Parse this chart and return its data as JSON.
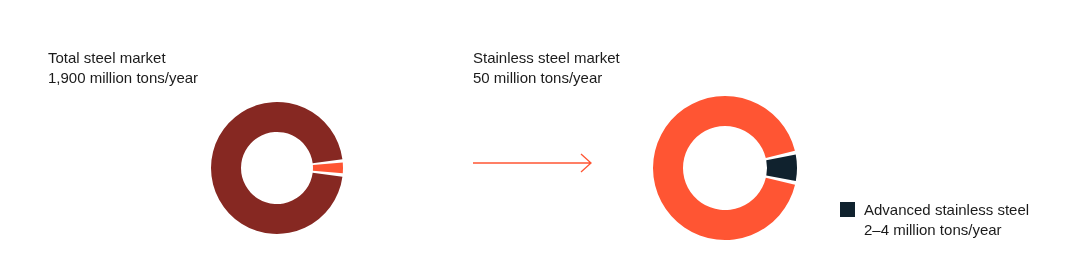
{
  "chart_data": [
    {
      "type": "donut",
      "title": "Total steel market",
      "subtitle": "1,900 million tons/year",
      "categories": [
        null,
        null
      ],
      "values": [
        2.6,
        97.4
      ],
      "colors": [
        "#ff5533",
        "#862822"
      ]
    },
    {
      "type": "donut",
      "title": "Stainless steel market",
      "subtitle": "50 million tons/year",
      "categories": [
        "Advanced stainless steel 2–4 million tons/year",
        null
      ],
      "values": [
        6,
        94
      ],
      "colors": [
        "#10222e",
        "#ff5533"
      ],
      "legend": "bottom right"
    }
  ]
}
